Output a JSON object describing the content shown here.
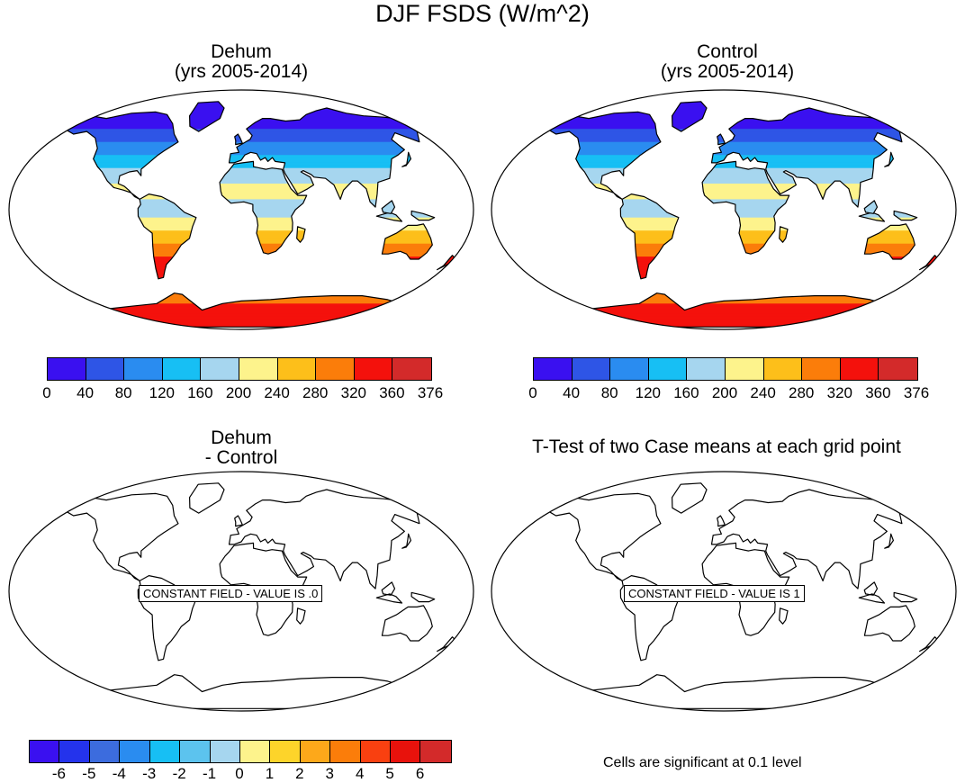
{
  "main_title": "DJF FSDS (W/m^2)",
  "panels": [
    {
      "title_line1": "Dehum",
      "title_line2": "(yrs 2005-2014)",
      "type": "filled"
    },
    {
      "title_line1": "Control",
      "title_line2": "(yrs 2005-2014)",
      "type": "filled"
    },
    {
      "title_line1": "Dehum",
      "title_line2": "- Control",
      "type": "constant",
      "label": "CONSTANT FIELD - VALUE IS .0"
    },
    {
      "title_line1": "T-Test of two Case means at each grid point",
      "title_line2": "",
      "type": "constant",
      "label": "CONSTANT FIELD - VALUE IS 1"
    }
  ],
  "colorbar_top": {
    "ticks": [
      "0",
      "40",
      "80",
      "120",
      "160",
      "200",
      "240",
      "280",
      "320",
      "360",
      "376"
    ],
    "colors": [
      "#3a10f0",
      "#2e55e6",
      "#2a8cf0",
      "#17bff4",
      "#a6d6ef",
      "#fdf38c",
      "#fdbf1a",
      "#fb7d0a",
      "#f4110c",
      "#d32a2a"
    ]
  },
  "colorbar_diff": {
    "ticks": [
      "-6",
      "-5",
      "-4",
      "-3",
      "-2",
      "-1",
      "0",
      "1",
      "2",
      "3",
      "4",
      "5",
      "6"
    ],
    "colors": [
      "#3a10f0",
      "#2433ec",
      "#3c6cde",
      "#2a8cf0",
      "#17bff4",
      "#5cc3ee",
      "#a6d6ef",
      "#fdf38c",
      "#fdd42a",
      "#fda81a",
      "#fb7d0a",
      "#f94010",
      "#e8120c",
      "#d32a2a"
    ]
  },
  "significance_note": "Cells are significant at 0.1 level"
}
